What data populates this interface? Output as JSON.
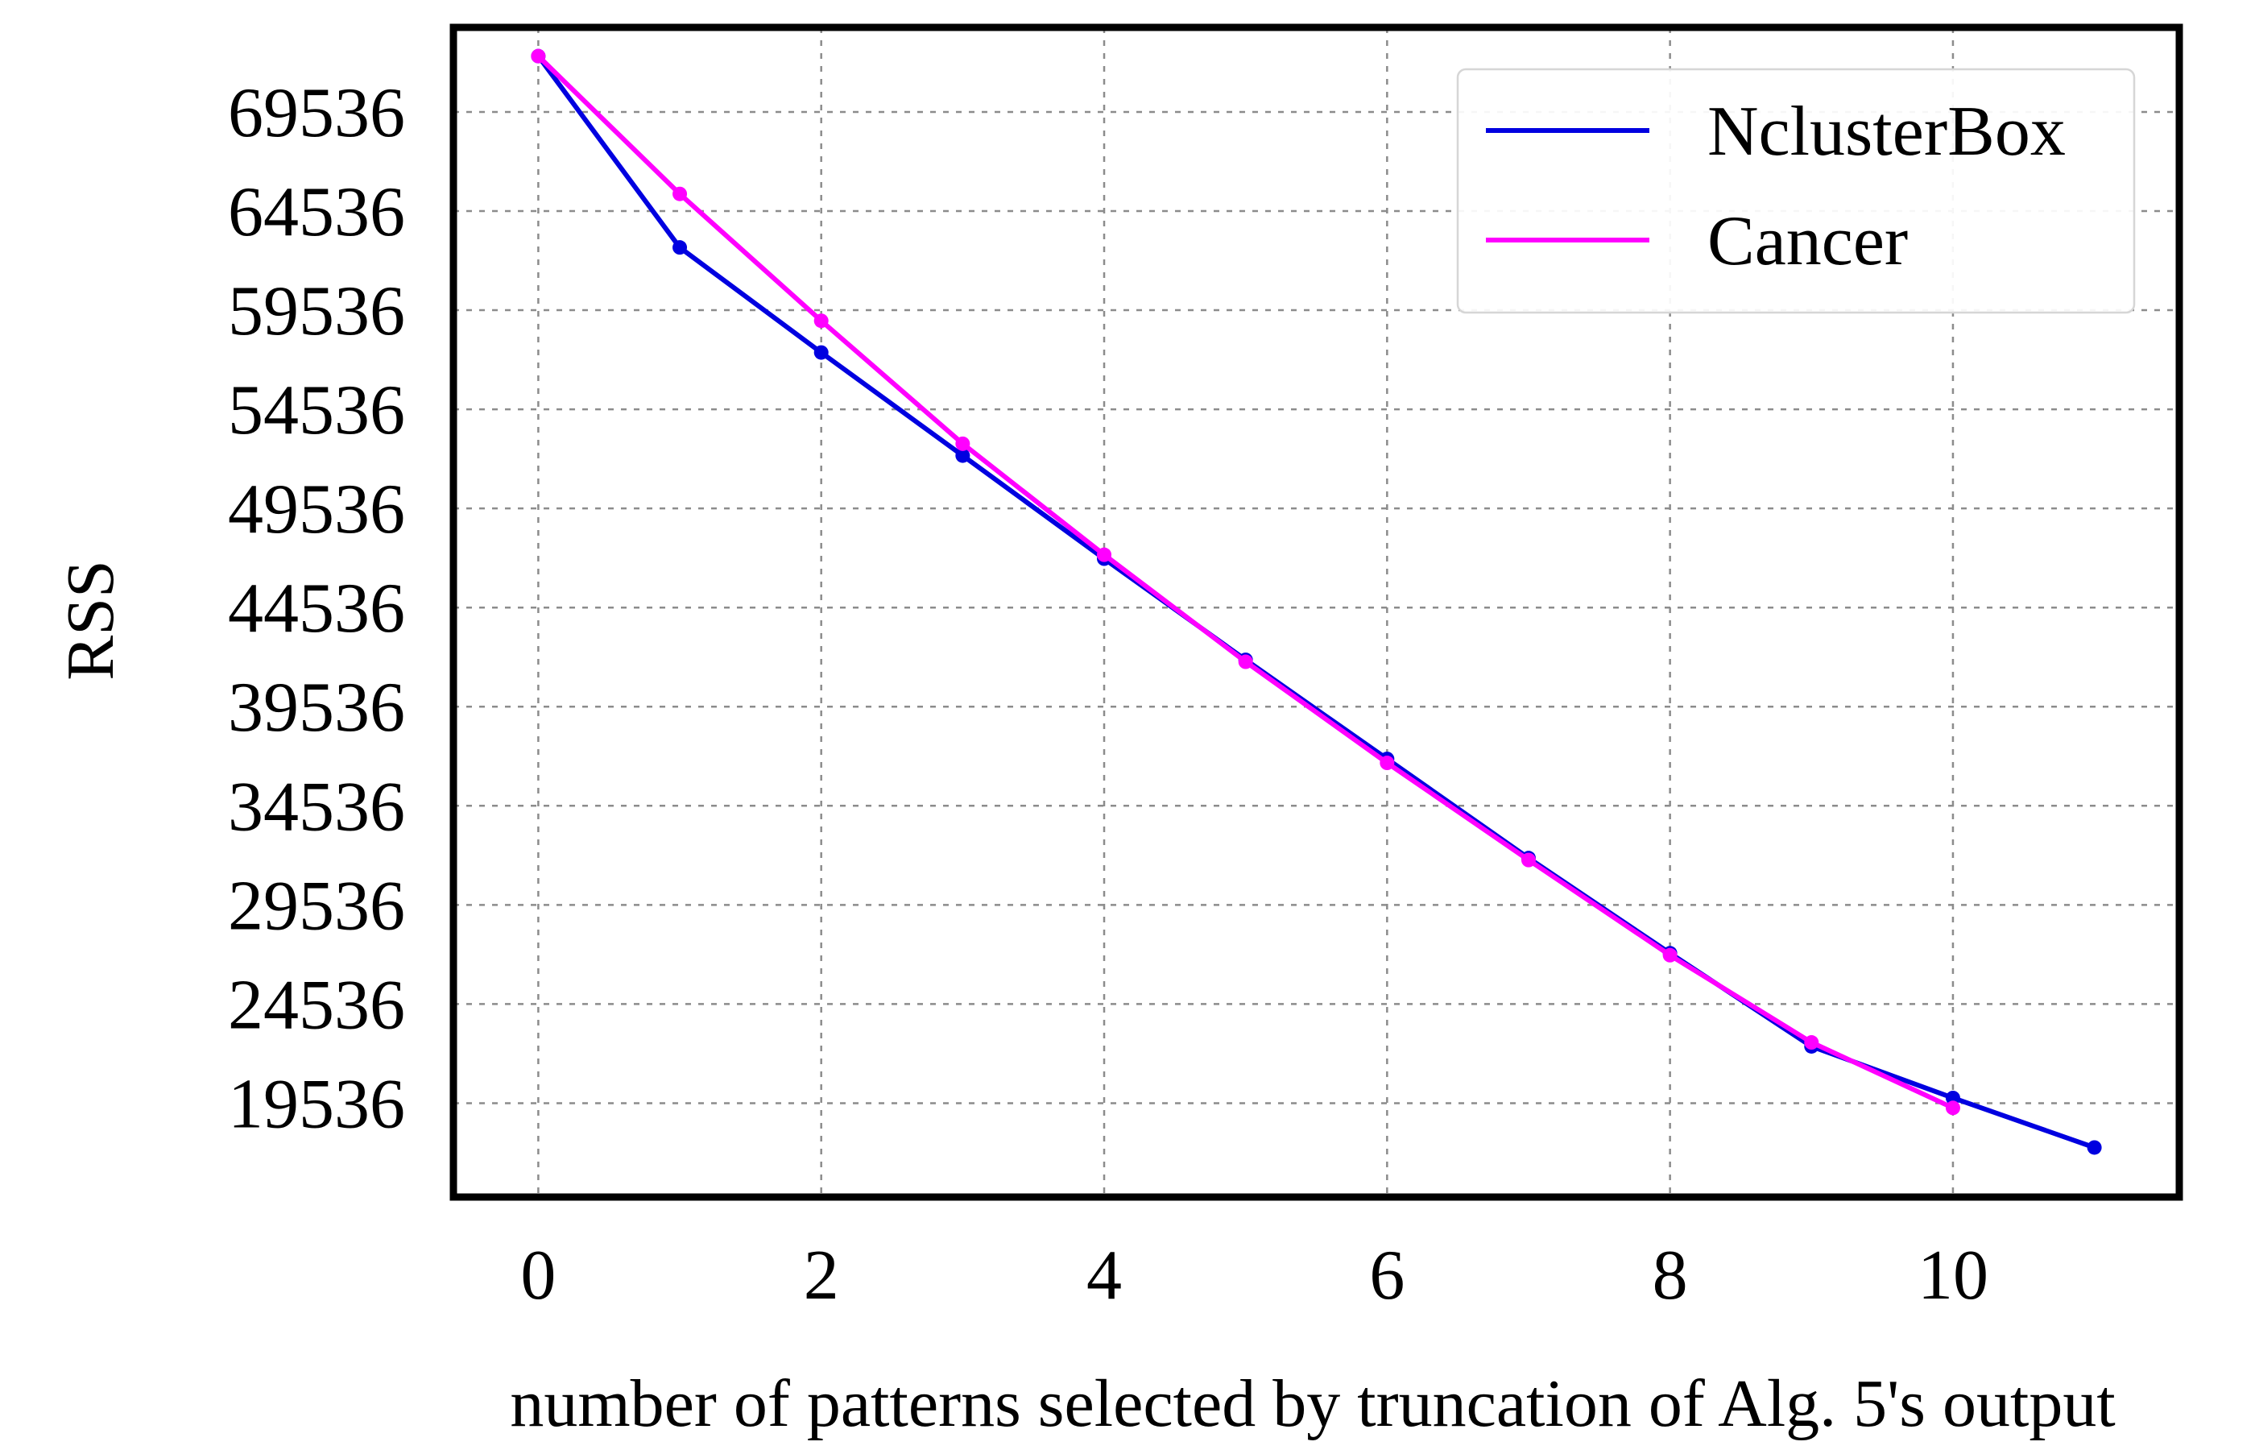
{
  "chart_data": {
    "type": "line",
    "title": "",
    "xlabel": "number of patterns selected by truncation of Alg. 5's output",
    "ylabel": "RSS",
    "xlim": [
      -0.6,
      11.6
    ],
    "ylim": [
      14800,
      73800
    ],
    "xticks": [
      0,
      2,
      4,
      6,
      8,
      10
    ],
    "yticks": [
      19536,
      24536,
      29536,
      34536,
      39536,
      44536,
      49536,
      54536,
      59536,
      64536,
      69536
    ],
    "grid": true,
    "legend_position": "top-right",
    "series": [
      {
        "name": "NclusterBox",
        "color": "#0000e0",
        "x": [
          0,
          1,
          2,
          3,
          4,
          5,
          6,
          7,
          8,
          9,
          10,
          11
        ],
        "y": [
          72350,
          62700,
          57400,
          52200,
          47000,
          41900,
          36900,
          31900,
          27100,
          22400,
          19800,
          17300
        ]
      },
      {
        "name": "Cancer",
        "color": "#ff00ff",
        "x": [
          0,
          1,
          2,
          3,
          4,
          5,
          6,
          7,
          8,
          9,
          10
        ],
        "y": [
          72350,
          65400,
          59000,
          52800,
          47200,
          41800,
          36700,
          31800,
          27000,
          22600,
          19300
        ]
      }
    ]
  }
}
